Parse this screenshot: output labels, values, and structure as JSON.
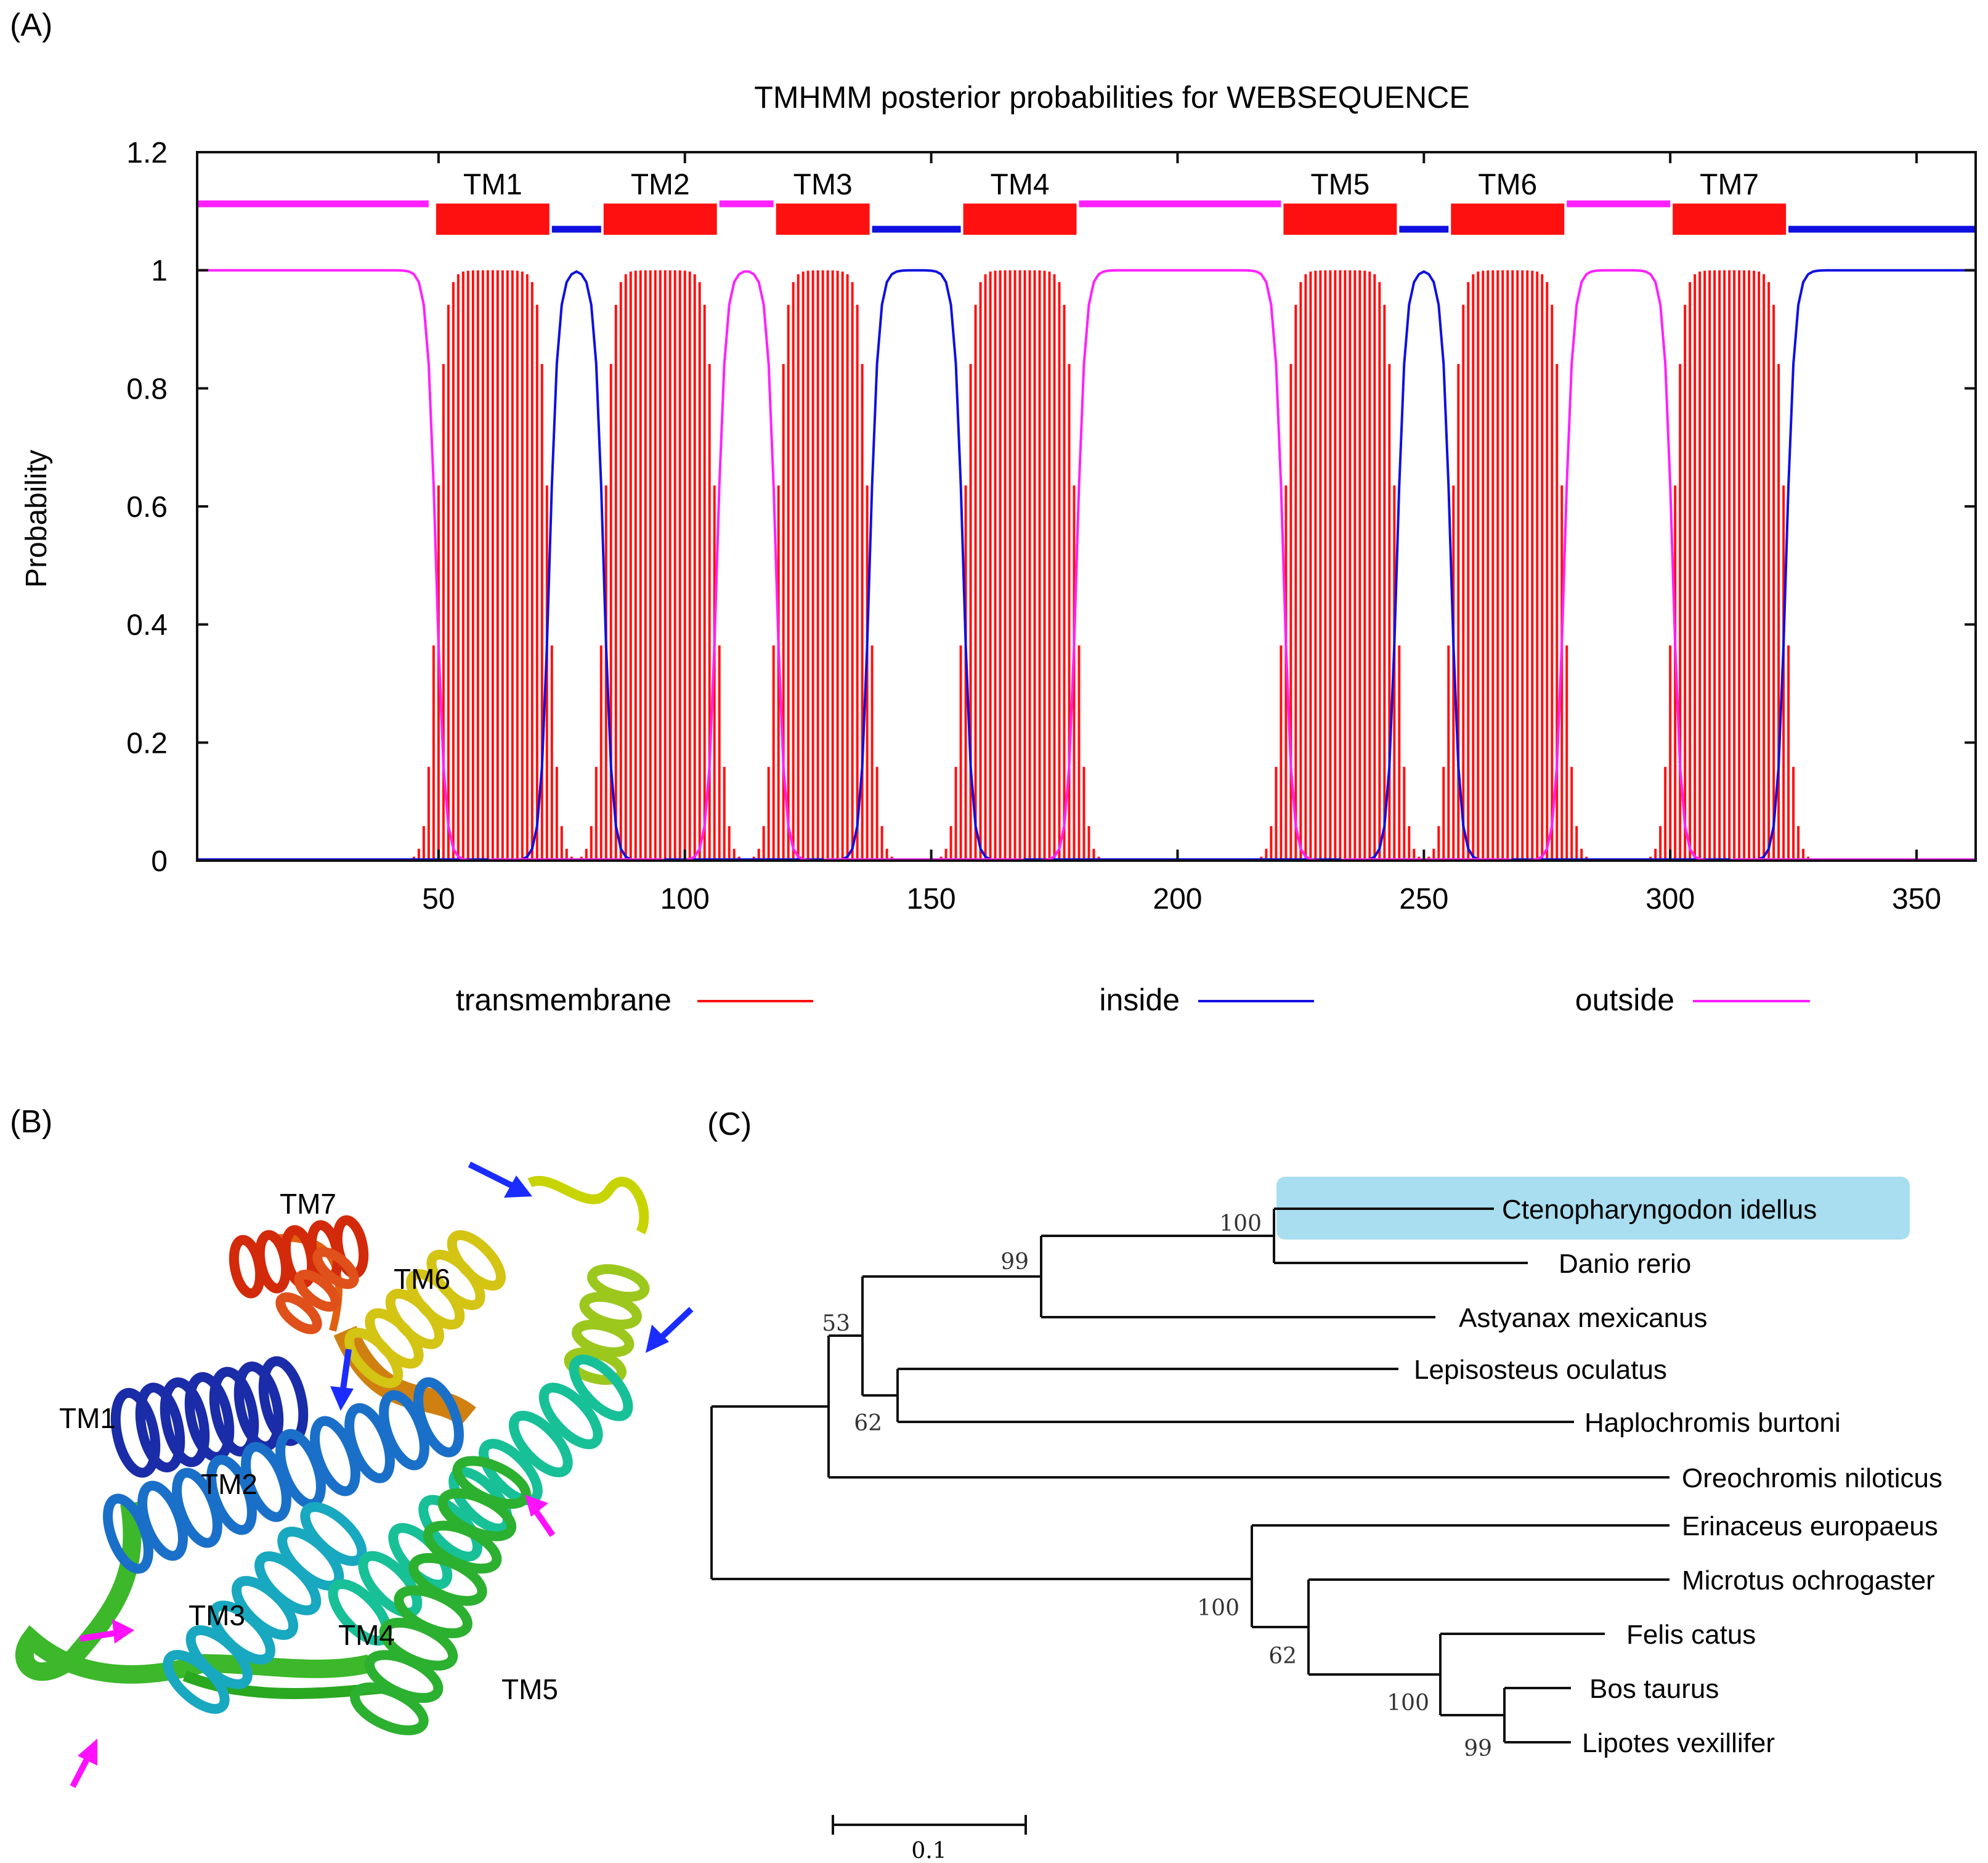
{
  "panels": {
    "a_label": "(A)",
    "b_label": "(B)",
    "c_label": "(C)"
  },
  "chart_data": {
    "type": "area",
    "title": "TMHMM  posterior probabilities for WEBSEQUENCE",
    "ylabel": "Probability",
    "xlabel": "",
    "xlim": [
      1,
      362
    ],
    "ylim": [
      0,
      1.2
    ],
    "xticks": [
      "50",
      "100",
      "150",
      "200",
      "250",
      "300",
      "350"
    ],
    "xtick_values": [
      50,
      100,
      150,
      200,
      250,
      300,
      350
    ],
    "yticks": [
      "0",
      "0.2",
      "0.4",
      "0.6",
      "0.8",
      "1",
      "1.2"
    ],
    "ytick_values": [
      0,
      0.2,
      0.4,
      0.6,
      0.8,
      1.0,
      1.2
    ],
    "helices": [
      {
        "label": "TM1",
        "start": 50,
        "end": 72
      },
      {
        "label": "TM2",
        "start": 84,
        "end": 106
      },
      {
        "label": "TM3",
        "start": 119,
        "end": 137
      },
      {
        "label": "TM4",
        "start": 157,
        "end": 179
      },
      {
        "label": "TM5",
        "start": 222,
        "end": 244
      },
      {
        "label": "TM6",
        "start": 256,
        "end": 278
      },
      {
        "label": "TM7",
        "start": 301,
        "end": 323
      }
    ],
    "topology": [
      {
        "side": "outside",
        "start": 1,
        "end": 48
      },
      {
        "side": "inside",
        "start": 73,
        "end": 83
      },
      {
        "side": "outside",
        "start": 107,
        "end": 118
      },
      {
        "side": "inside",
        "start": 138,
        "end": 156
      },
      {
        "side": "outside",
        "start": 180,
        "end": 221
      },
      {
        "side": "inside",
        "start": 245,
        "end": 255
      },
      {
        "side": "outside",
        "start": 279,
        "end": 300
      },
      {
        "side": "inside",
        "start": 324,
        "end": 362
      }
    ],
    "series": [
      {
        "name": "transmembrane",
        "color": "#ff1010"
      },
      {
        "name": "inside",
        "color": "#1010e0"
      },
      {
        "name": "outside",
        "color": "#ff20ff"
      }
    ],
    "legend": {
      "position": "bottom",
      "items": [
        "transmembrane",
        "inside",
        "outside"
      ]
    }
  },
  "structure": {
    "labels": [
      "TM7",
      "TM6",
      "TM1",
      "TM2",
      "TM3",
      "TM4",
      "TM5"
    ]
  },
  "tree": {
    "taxa": [
      "Ctenopharyngodon idellus",
      "Danio rerio",
      "Astyanax mexicanus",
      "Lepisosteus oculatus",
      "Haplochromis burtoni",
      "Oreochromis niloticus",
      "Erinaceus europaeus",
      "Microtus ochrogaster",
      "Felis catus",
      "Bos taurus",
      "Lipotes vexillifer"
    ],
    "highlighted": "Ctenopharyngodon idellus",
    "highlight_color": "#a8def0",
    "bootstraps": [
      "100",
      "99",
      "53",
      "62",
      "100",
      "62",
      "100",
      "99"
    ],
    "scale_label": "0.1"
  }
}
